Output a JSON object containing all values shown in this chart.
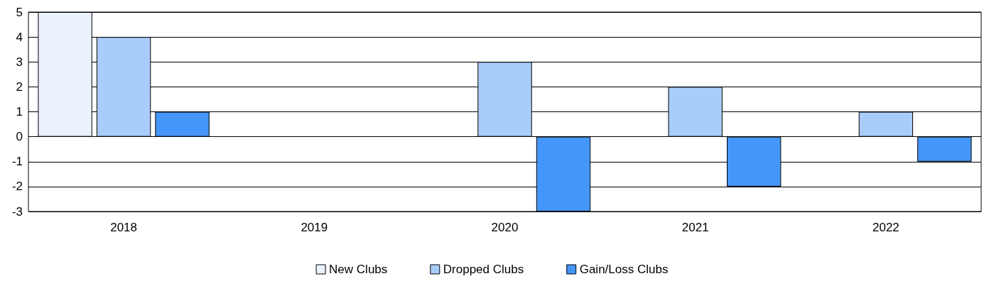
{
  "chart_data": {
    "type": "bar",
    "categories": [
      "2018",
      "2019",
      "2020",
      "2021",
      "2022"
    ],
    "series": [
      {
        "name": "New Clubs",
        "color": "#eaf2fe",
        "values": [
          5,
          null,
          null,
          null,
          null
        ]
      },
      {
        "name": "Dropped Clubs",
        "color": "#a9cdfb",
        "values": [
          4,
          null,
          3,
          2,
          1
        ]
      },
      {
        "name": "Gain/Loss Clubs",
        "color": "#4596f9",
        "values": [
          1,
          null,
          -3,
          -2,
          -1
        ]
      }
    ],
    "ylim": [
      -3,
      5
    ],
    "yticks": [
      -3,
      -2,
      -1,
      0,
      1,
      2,
      3,
      4,
      5
    ],
    "grid": "y",
    "legend": "bottom"
  }
}
